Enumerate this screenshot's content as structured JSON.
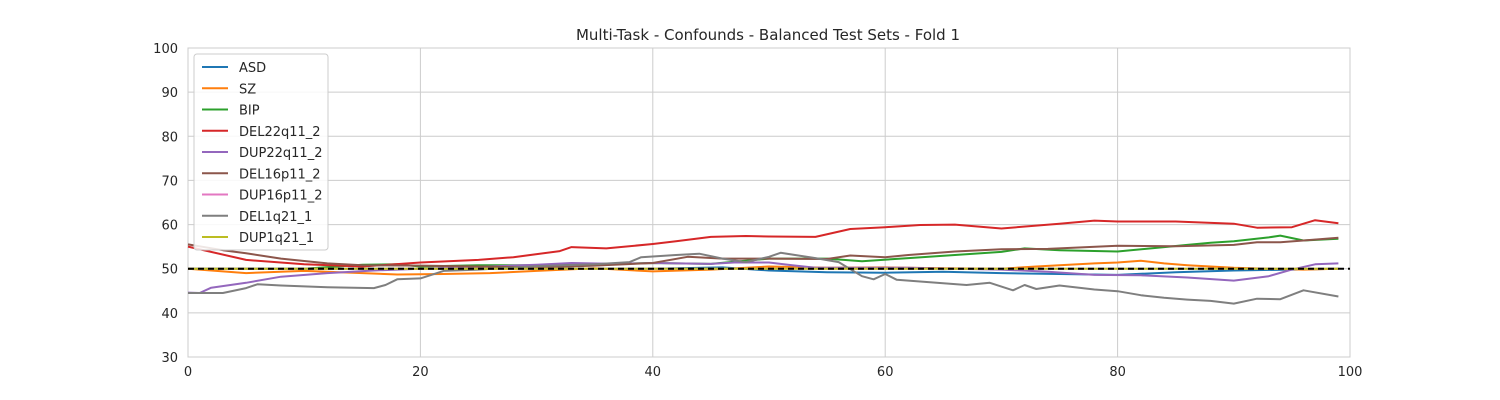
{
  "chart_data": {
    "type": "line",
    "title": "Multi-Task - Confounds - Balanced Test Sets - Fold 1",
    "xlabel": "",
    "ylabel": "",
    "xlim": [
      0,
      100
    ],
    "ylim": [
      30,
      100
    ],
    "xticks": [
      0,
      20,
      40,
      60,
      80,
      100
    ],
    "yticks": [
      30,
      40,
      50,
      60,
      70,
      80,
      90,
      100
    ],
    "grid": true,
    "legend_position": "upper-left",
    "reference_line": {
      "y": 50,
      "style": "dashed",
      "color": "#000000"
    },
    "series": [
      {
        "name": "ASD",
        "color": "#1f77b4",
        "points": [
          [
            0,
            50
          ],
          [
            10,
            50
          ],
          [
            20,
            50
          ],
          [
            30,
            50
          ],
          [
            40,
            50
          ],
          [
            46,
            50.3
          ],
          [
            50,
            49.6
          ],
          [
            55,
            49.2
          ],
          [
            60,
            49.1
          ],
          [
            65,
            49.3
          ],
          [
            70,
            49
          ],
          [
            75,
            48.8
          ],
          [
            80,
            48.6
          ],
          [
            85,
            49.2
          ],
          [
            90,
            49.6
          ],
          [
            95,
            49.8
          ],
          [
            99,
            50
          ]
        ]
      },
      {
        "name": "SZ",
        "color": "#ff7f0e",
        "points": [
          [
            0,
            50
          ],
          [
            5,
            49
          ],
          [
            10,
            49.5
          ],
          [
            18,
            48.7
          ],
          [
            22,
            48.8
          ],
          [
            26,
            49
          ],
          [
            30,
            49.5
          ],
          [
            35,
            50.1
          ],
          [
            40,
            49.4
          ],
          [
            45,
            49.8
          ],
          [
            50,
            50.5
          ],
          [
            55,
            50.2
          ],
          [
            60,
            50.3
          ],
          [
            65,
            50.1
          ],
          [
            70,
            50
          ],
          [
            73,
            50.5
          ],
          [
            75,
            50.8
          ],
          [
            78,
            51.2
          ],
          [
            80,
            51.4
          ],
          [
            82,
            51.8
          ],
          [
            84,
            51.2
          ],
          [
            86,
            50.8
          ],
          [
            88,
            50.5
          ],
          [
            90,
            50.2
          ],
          [
            93,
            50
          ],
          [
            96,
            49.8
          ],
          [
            99,
            50
          ]
        ]
      },
      {
        "name": "BIP",
        "color": "#2ca02c",
        "points": [
          [
            0,
            50
          ],
          [
            10,
            50
          ],
          [
            15,
            50.9
          ],
          [
            18,
            51
          ],
          [
            20,
            50.5
          ],
          [
            25,
            50.8
          ],
          [
            30,
            50.8
          ],
          [
            35,
            51
          ],
          [
            40,
            51.3
          ],
          [
            45,
            51.1
          ],
          [
            50,
            52.3
          ],
          [
            55,
            52.3
          ],
          [
            58,
            51.7
          ],
          [
            62,
            52.4
          ],
          [
            66,
            53.1
          ],
          [
            70,
            53.8
          ],
          [
            72,
            54.6
          ],
          [
            75,
            54.2
          ],
          [
            80,
            53.9
          ],
          [
            84,
            54.9
          ],
          [
            86,
            55.4
          ],
          [
            88,
            55.9
          ],
          [
            90,
            56.2
          ],
          [
            93,
            57.1
          ],
          [
            94,
            57.5
          ],
          [
            96,
            56.4
          ],
          [
            99,
            56.8
          ]
        ]
      },
      {
        "name": "DEL22q11_2",
        "color": "#d62728",
        "points": [
          [
            0,
            55
          ],
          [
            5,
            52
          ],
          [
            10,
            51
          ],
          [
            15,
            50.5
          ],
          [
            20,
            51.4
          ],
          [
            25,
            52
          ],
          [
            28,
            52.6
          ],
          [
            32,
            54
          ],
          [
            33,
            54.9
          ],
          [
            36,
            54.6
          ],
          [
            40,
            55.6
          ],
          [
            42,
            56.2
          ],
          [
            45,
            57.2
          ],
          [
            48,
            57.4
          ],
          [
            50,
            57.3
          ],
          [
            54,
            57.2
          ],
          [
            57,
            59
          ],
          [
            60,
            59.4
          ],
          [
            63,
            59.9
          ],
          [
            66,
            60
          ],
          [
            70,
            59.1
          ],
          [
            75,
            60.2
          ],
          [
            78,
            60.9
          ],
          [
            80,
            60.7
          ],
          [
            85,
            60.7
          ],
          [
            90,
            60.2
          ],
          [
            92,
            59.3
          ],
          [
            95,
            59.4
          ],
          [
            97,
            61
          ],
          [
            99,
            60.3
          ]
        ]
      },
      {
        "name": "DUP22q11_2",
        "color": "#9467bd",
        "points": [
          [
            0,
            44.6
          ],
          [
            1,
            44.5
          ],
          [
            2,
            45.7
          ],
          [
            5,
            46.8
          ],
          [
            8,
            48.2
          ],
          [
            12,
            49
          ],
          [
            16,
            49.6
          ],
          [
            20,
            50
          ],
          [
            25,
            50.4
          ],
          [
            30,
            50.9
          ],
          [
            33,
            51.3
          ],
          [
            37,
            51.1
          ],
          [
            40,
            51.3
          ],
          [
            45,
            51.1
          ],
          [
            47,
            51.4
          ],
          [
            50,
            51.4
          ],
          [
            52,
            50.8
          ],
          [
            54,
            50.2
          ],
          [
            58,
            50.2
          ],
          [
            62,
            50.2
          ],
          [
            66,
            50
          ],
          [
            70,
            49.8
          ],
          [
            74,
            49.3
          ],
          [
            78,
            48.6
          ],
          [
            82,
            48.5
          ],
          [
            86,
            48
          ],
          [
            90,
            47.3
          ],
          [
            93,
            48.3
          ],
          [
            95,
            49.8
          ],
          [
            97,
            51
          ],
          [
            99,
            51.2
          ]
        ]
      },
      {
        "name": "DEL16p11_2",
        "color": "#8c564b",
        "points": [
          [
            0,
            55.5
          ],
          [
            3,
            54.2
          ],
          [
            5,
            53.5
          ],
          [
            8,
            52.3
          ],
          [
            12,
            51.2
          ],
          [
            15,
            50.8
          ],
          [
            20,
            50.7
          ],
          [
            25,
            50.5
          ],
          [
            30,
            50.3
          ],
          [
            35,
            50.7
          ],
          [
            40,
            51.3
          ],
          [
            43,
            52.7
          ],
          [
            46,
            52.3
          ],
          [
            50,
            52.3
          ],
          [
            55,
            52.2
          ],
          [
            57,
            53
          ],
          [
            60,
            52.6
          ],
          [
            62,
            53.1
          ],
          [
            66,
            53.9
          ],
          [
            70,
            54.4
          ],
          [
            74,
            54.5
          ],
          [
            80,
            55.2
          ],
          [
            85,
            55.1
          ],
          [
            90,
            55.4
          ],
          [
            92,
            56
          ],
          [
            94,
            56
          ],
          [
            96,
            56.4
          ],
          [
            99,
            57
          ]
        ]
      },
      {
        "name": "DUP16p11_2",
        "color": "#e377c2",
        "points": [
          [
            0,
            50
          ],
          [
            20,
            50
          ],
          [
            40,
            50
          ],
          [
            60,
            50
          ],
          [
            80,
            50
          ],
          [
            99,
            50
          ]
        ]
      },
      {
        "name": "DEL1q21_1",
        "color": "#7f7f7f",
        "points": [
          [
            0,
            44.5
          ],
          [
            3,
            44.5
          ],
          [
            5,
            45.6
          ],
          [
            6,
            46.5
          ],
          [
            8,
            46.2
          ],
          [
            12,
            45.8
          ],
          [
            16,
            45.6
          ],
          [
            17,
            46.3
          ],
          [
            18,
            47.6
          ],
          [
            20,
            47.8
          ],
          [
            22,
            49.5
          ],
          [
            25,
            49.8
          ],
          [
            30,
            50.6
          ],
          [
            35,
            51
          ],
          [
            38,
            51.5
          ],
          [
            39,
            52.6
          ],
          [
            42,
            53.1
          ],
          [
            44,
            53.4
          ],
          [
            46,
            52.3
          ],
          [
            48,
            51.5
          ],
          [
            50,
            52.7
          ],
          [
            51,
            53.6
          ],
          [
            54,
            52.4
          ],
          [
            56,
            51.5
          ],
          [
            58,
            48.3
          ],
          [
            59,
            47.6
          ],
          [
            60,
            48.8
          ],
          [
            61,
            47.5
          ],
          [
            65,
            46.7
          ],
          [
            67,
            46.3
          ],
          [
            69,
            46.8
          ],
          [
            71,
            45.1
          ],
          [
            72,
            46.3
          ],
          [
            73,
            45.4
          ],
          [
            75,
            46.2
          ],
          [
            78,
            45.3
          ],
          [
            80,
            44.9
          ],
          [
            82,
            44
          ],
          [
            84,
            43.4
          ],
          [
            86,
            43
          ],
          [
            88,
            42.7
          ],
          [
            90,
            42.1
          ],
          [
            92,
            43.2
          ],
          [
            94,
            43.1
          ],
          [
            96,
            45.1
          ],
          [
            99,
            43.7
          ]
        ]
      },
      {
        "name": "DUP1q21_1",
        "color": "#bcbd22",
        "points": [
          [
            0,
            50
          ],
          [
            20,
            50
          ],
          [
            40,
            50
          ],
          [
            60,
            50
          ],
          [
            80,
            50
          ],
          [
            99,
            50
          ]
        ]
      }
    ]
  }
}
